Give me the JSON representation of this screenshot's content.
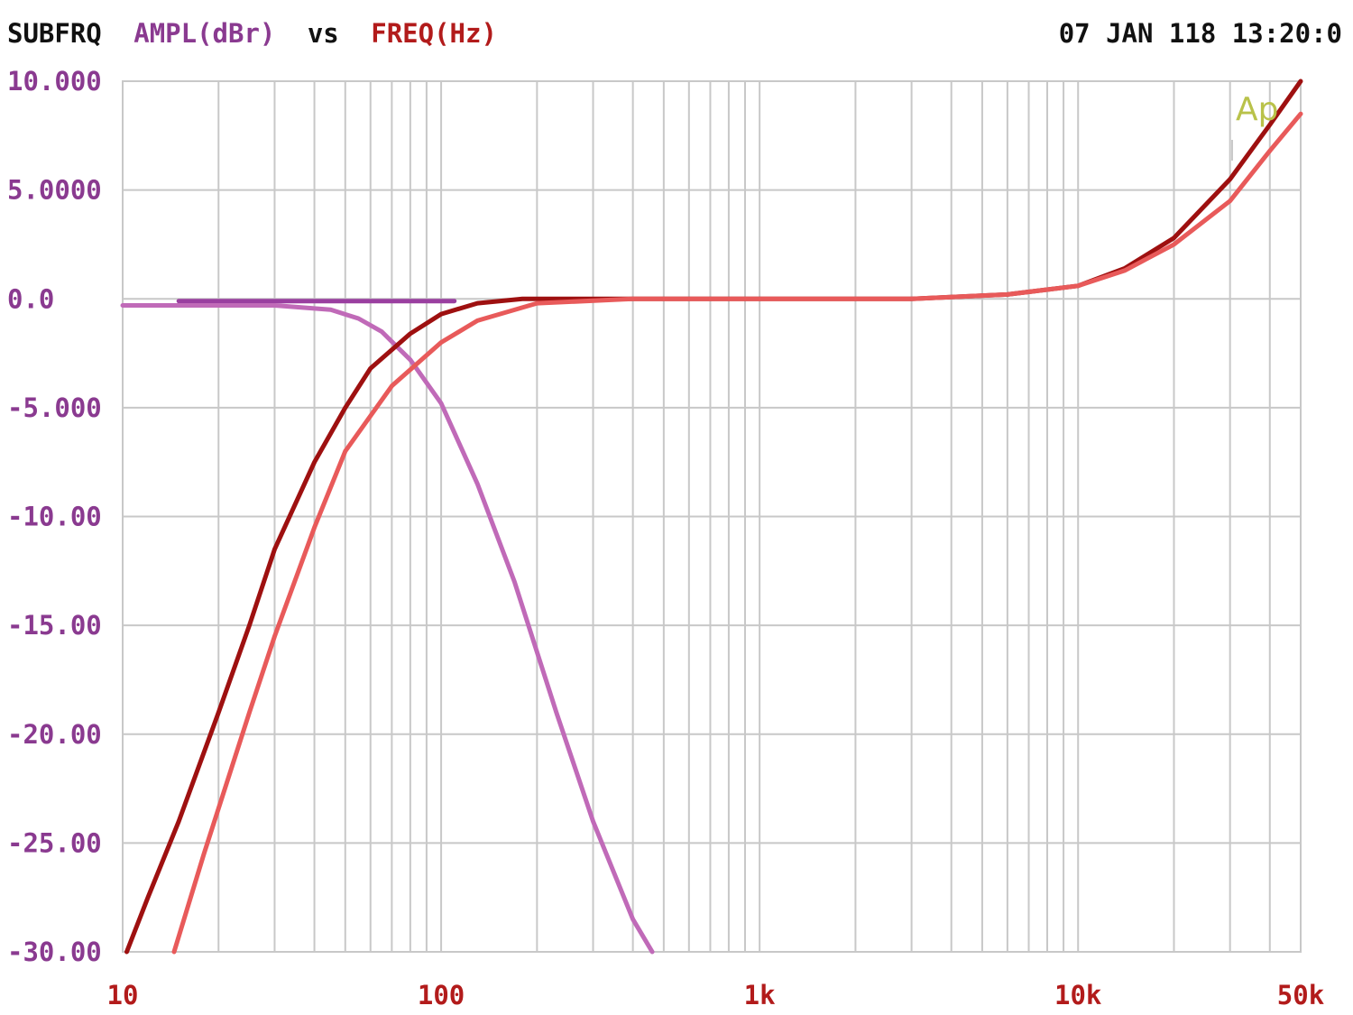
{
  "header": {
    "sweep_name": "SUBFRQ",
    "y_quantity": "AMPL(dBr)",
    "vs_label": "vs",
    "x_quantity": "FREQ(Hz)",
    "timestamp": "07 JAN 118 13:20:0"
  },
  "watermark": "Ap",
  "colors": {
    "y_axis_text": "#8a3a90",
    "x_axis_text": "#b21b1b",
    "header_text": "#111111",
    "grid": "#c8c8c8",
    "watermark": "#b9c24a"
  },
  "chart_data": {
    "type": "line",
    "title": "",
    "xlabel": "FREQ(Hz)",
    "ylabel": "AMPL(dBr)",
    "x_scale": "log",
    "xlim": [
      10,
      50000
    ],
    "ylim": [
      -30,
      10
    ],
    "grid": true,
    "legend": "none",
    "x_ticks": [
      {
        "value": 10,
        "label": "10"
      },
      {
        "value": 100,
        "label": "100"
      },
      {
        "value": 1000,
        "label": "1k"
      },
      {
        "value": 10000,
        "label": "10k"
      },
      {
        "value": 50000,
        "label": "50k"
      }
    ],
    "y_ticks": [
      {
        "value": 10,
        "label": "10.000"
      },
      {
        "value": 5,
        "label": "5.0000"
      },
      {
        "value": 0,
        "label": "0.0"
      },
      {
        "value": -5,
        "label": "-5.000"
      },
      {
        "value": -10,
        "label": "-10.00"
      },
      {
        "value": -15,
        "label": "-15.00"
      },
      {
        "value": -20,
        "label": "-20.00"
      },
      {
        "value": -25,
        "label": "-25.00"
      },
      {
        "value": -30,
        "label": "-30.00"
      }
    ],
    "series": [
      {
        "color": "#9a3fa0",
        "points": [
          [
            15,
            -0.1
          ],
          [
            50,
            -0.1
          ],
          [
            110,
            -0.1
          ]
        ]
      },
      {
        "color": "#c06ab8",
        "points": [
          [
            10,
            -0.3
          ],
          [
            30,
            -0.3
          ],
          [
            45,
            -0.5
          ],
          [
            55,
            -0.9
          ],
          [
            65,
            -1.5
          ],
          [
            80,
            -2.8
          ],
          [
            100,
            -4.8
          ],
          [
            130,
            -8.5
          ],
          [
            170,
            -13
          ],
          [
            230,
            -19
          ],
          [
            300,
            -24
          ],
          [
            400,
            -28.5
          ],
          [
            460,
            -30
          ]
        ]
      },
      {
        "color": "#9e1010",
        "points": [
          [
            10.3,
            -30
          ],
          [
            12,
            -27.5
          ],
          [
            15,
            -24
          ],
          [
            20,
            -19
          ],
          [
            25,
            -15
          ],
          [
            30,
            -11.5
          ],
          [
            40,
            -7.5
          ],
          [
            50,
            -5
          ],
          [
            60,
            -3.2
          ],
          [
            80,
            -1.6
          ],
          [
            100,
            -0.7
          ],
          [
            130,
            -0.2
          ],
          [
            180,
            0
          ],
          [
            900,
            0
          ],
          [
            3000,
            0
          ],
          [
            6000,
            0.2
          ],
          [
            10000,
            0.6
          ],
          [
            14000,
            1.4
          ],
          [
            20000,
            2.8
          ],
          [
            30000,
            5.5
          ],
          [
            40000,
            8
          ],
          [
            50000,
            10
          ]
        ]
      },
      {
        "color": "#e85a5a",
        "points": [
          [
            14.5,
            -30
          ],
          [
            18,
            -25.5
          ],
          [
            25,
            -19
          ],
          [
            30,
            -15.5
          ],
          [
            40,
            -10.5
          ],
          [
            50,
            -7
          ],
          [
            70,
            -4
          ],
          [
            100,
            -2
          ],
          [
            130,
            -1
          ],
          [
            200,
            -0.2
          ],
          [
            400,
            0
          ],
          [
            1000,
            0
          ],
          [
            3000,
            0
          ],
          [
            6000,
            0.2
          ],
          [
            10000,
            0.6
          ],
          [
            14000,
            1.3
          ],
          [
            20000,
            2.5
          ],
          [
            30000,
            4.5
          ],
          [
            40000,
            6.8
          ],
          [
            50000,
            8.5
          ]
        ]
      }
    ]
  }
}
